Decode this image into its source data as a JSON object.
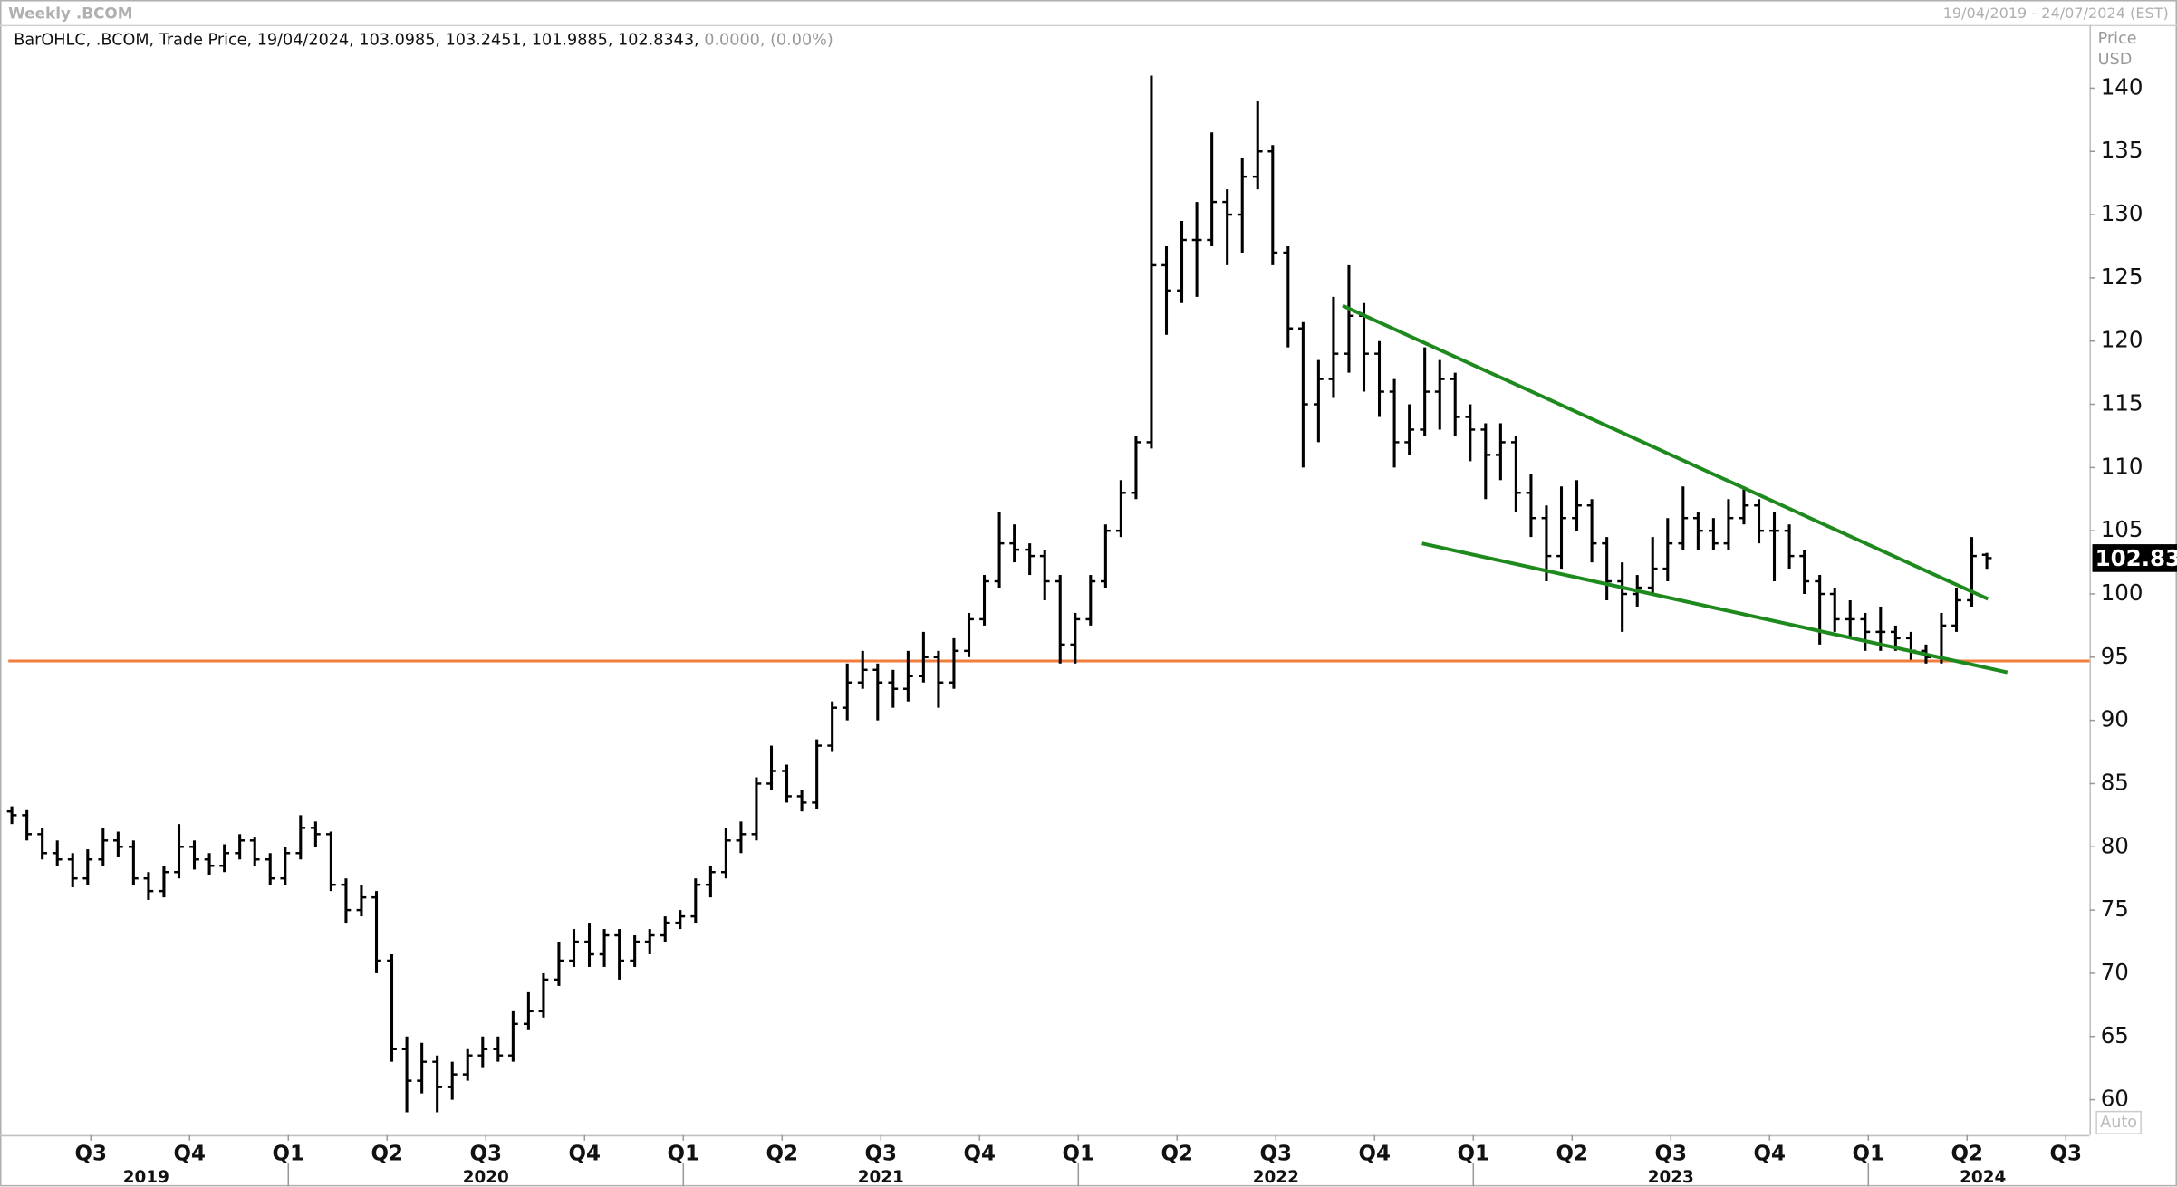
{
  "chart_data": {
    "type": "ohlc",
    "title": "Weekly .BCOM",
    "date_range": "19/04/2019 - 24/07/2024 (EST)",
    "info_line": "BarOHLC, .BCOM, Trade Price, 19/04/2024, 103.0985, 103.2451, 101.9885, 102.8343,",
    "change_text": "0.0000, (0.00%)",
    "y_axis_label": "Price",
    "y_axis_unit": "USD",
    "last_label": "102.83",
    "auto_button": "Auto",
    "color": "#000000",
    "xlim": [
      2019.27,
      2024.56
    ],
    "ylim": [
      57.2,
      145
    ],
    "yticks": [
      60,
      65,
      70,
      75,
      80,
      85,
      90,
      95,
      100,
      105,
      110,
      115,
      120,
      125,
      130,
      135,
      140
    ],
    "xticks": [
      {
        "value": 2019.5,
        "label": "Q3"
      },
      {
        "value": 2019.75,
        "label": "Q4"
      },
      {
        "value": 2020.0,
        "label": "Q1"
      },
      {
        "value": 2020.25,
        "label": "Q2"
      },
      {
        "value": 2020.5,
        "label": "Q3"
      },
      {
        "value": 2020.75,
        "label": "Q4"
      },
      {
        "value": 2021.0,
        "label": "Q1"
      },
      {
        "value": 2021.25,
        "label": "Q2"
      },
      {
        "value": 2021.5,
        "label": "Q3"
      },
      {
        "value": 2021.75,
        "label": "Q4"
      },
      {
        "value": 2022.0,
        "label": "Q1"
      },
      {
        "value": 2022.25,
        "label": "Q2"
      },
      {
        "value": 2022.5,
        "label": "Q3"
      },
      {
        "value": 2022.75,
        "label": "Q4"
      },
      {
        "value": 2023.0,
        "label": "Q1"
      },
      {
        "value": 2023.25,
        "label": "Q2"
      },
      {
        "value": 2023.5,
        "label": "Q3"
      },
      {
        "value": 2023.75,
        "label": "Q4"
      },
      {
        "value": 2024.0,
        "label": "Q1"
      },
      {
        "value": 2024.25,
        "label": "Q2"
      },
      {
        "value": 2024.5,
        "label": "Q3"
      }
    ],
    "year_labels": [
      {
        "value": 2019.64,
        "label": "2019"
      },
      {
        "value": 2020.5,
        "label": "2020"
      },
      {
        "value": 2021.5,
        "label": "2021"
      },
      {
        "value": 2022.5,
        "label": "2022"
      },
      {
        "value": 2023.5,
        "label": "2023"
      },
      {
        "value": 2024.29,
        "label": "2024"
      }
    ],
    "hline": {
      "value": 94.7,
      "color": "#f07d3c"
    },
    "trendlines": [
      {
        "color": "#1e8a1e",
        "x": [
          2022.669,
          2024.303
        ],
        "y": [
          122.8,
          99.6
        ]
      },
      {
        "color": "#1e8a1e",
        "x": [
          2022.87,
          2024.352
        ],
        "y": [
          104,
          93.8
        ]
      }
    ],
    "x": [
      2019.3,
      2019.338,
      2019.377,
      2019.415,
      2019.454,
      2019.492,
      2019.531,
      2019.569,
      2019.608,
      2019.646,
      2019.685,
      2019.723,
      2019.762,
      2019.8,
      2019.838,
      2019.877,
      2019.915,
      2019.954,
      2019.992,
      2020.031,
      2020.069,
      2020.108,
      2020.146,
      2020.185,
      2020.223,
      2020.262,
      2020.3,
      2020.338,
      2020.377,
      2020.415,
      2020.454,
      2020.492,
      2020.531,
      2020.569,
      2020.608,
      2020.646,
      2020.685,
      2020.723,
      2020.762,
      2020.8,
      2020.838,
      2020.877,
      2020.915,
      2020.954,
      2020.992,
      2021.031,
      2021.069,
      2021.108,
      2021.146,
      2021.185,
      2021.223,
      2021.262,
      2021.3,
      2021.338,
      2021.377,
      2021.415,
      2021.454,
      2021.492,
      2021.531,
      2021.569,
      2021.608,
      2021.646,
      2021.685,
      2021.723,
      2021.762,
      2021.8,
      2021.838,
      2021.877,
      2021.915,
      2021.954,
      2021.992,
      2022.031,
      2022.069,
      2022.108,
      2022.146,
      2022.185,
      2022.223,
      2022.262,
      2022.3,
      2022.338,
      2022.377,
      2022.415,
      2022.454,
      2022.492,
      2022.531,
      2022.569,
      2022.608,
      2022.646,
      2022.685,
      2022.723,
      2022.762,
      2022.8,
      2022.838,
      2022.877,
      2022.915,
      2022.954,
      2022.992,
      2023.031,
      2023.069,
      2023.108,
      2023.146,
      2023.185,
      2023.223,
      2023.262,
      2023.3,
      2023.338,
      2023.377,
      2023.415,
      2023.454,
      2023.492,
      2023.531,
      2023.569,
      2023.608,
      2023.646,
      2023.685,
      2023.723,
      2023.762,
      2023.8,
      2023.838,
      2023.877,
      2023.915,
      2023.954,
      2023.992,
      2024.031,
      2024.069,
      2024.108,
      2024.146,
      2024.185,
      2024.223,
      2024.262,
      2024.3
    ],
    "ohlc": [
      [
        82.8,
        83.2,
        81.8,
        82.5
      ],
      [
        82.5,
        82.9,
        80.5,
        81
      ],
      [
        81,
        81.5,
        79,
        79.5
      ],
      [
        79.5,
        80.5,
        78.5,
        79
      ],
      [
        79,
        79.5,
        76.8,
        77.5
      ],
      [
        77.5,
        79.8,
        77,
        79
      ],
      [
        79,
        81.5,
        78.5,
        80.5
      ],
      [
        80.5,
        81.2,
        79.2,
        80
      ],
      [
        80,
        80.5,
        77,
        77.5
      ],
      [
        77.5,
        78,
        75.8,
        76.5
      ],
      [
        76.5,
        78.5,
        76,
        78
      ],
      [
        78,
        81.8,
        77.5,
        80
      ],
      [
        80,
        80.5,
        78.2,
        79
      ],
      [
        79,
        79.5,
        77.8,
        78.5
      ],
      [
        78.5,
        80.2,
        78,
        79.5
      ],
      [
        79.5,
        81,
        79,
        80.5
      ],
      [
        80.5,
        80.8,
        78.5,
        79
      ],
      [
        79,
        79.5,
        77,
        77.5
      ],
      [
        77.5,
        80,
        77,
        79.5
      ],
      [
        79.5,
        82.5,
        79,
        81.5
      ],
      [
        81.5,
        82,
        80,
        81
      ],
      [
        81,
        81.2,
        76.5,
        77
      ],
      [
        77,
        77.5,
        74,
        75
      ],
      [
        75,
        77,
        74.5,
        76
      ],
      [
        76,
        76.5,
        70,
        71
      ],
      [
        71,
        71.5,
        63,
        64
      ],
      [
        64,
        65,
        59,
        61.5
      ],
      [
        61.5,
        64.5,
        60.5,
        63
      ],
      [
        63,
        63.5,
        59,
        61
      ],
      [
        61,
        63,
        60,
        62
      ],
      [
        62,
        64,
        61.5,
        63.5
      ],
      [
        63.5,
        65,
        62.5,
        64
      ],
      [
        64,
        65,
        63,
        63.5
      ],
      [
        63.5,
        67,
        63,
        66
      ],
      [
        66,
        68.5,
        65.5,
        67
      ],
      [
        67,
        70,
        66.5,
        69.5
      ],
      [
        69.5,
        72.5,
        69,
        71
      ],
      [
        71,
        73.5,
        70.5,
        72.5
      ],
      [
        72.5,
        74,
        70.5,
        71.5
      ],
      [
        71.5,
        73.5,
        70.5,
        73
      ],
      [
        73,
        73.5,
        69.5,
        71
      ],
      [
        71,
        73,
        70.5,
        72.5
      ],
      [
        72.5,
        73.5,
        71.5,
        73
      ],
      [
        73,
        74.5,
        72.5,
        74
      ],
      [
        74,
        75,
        73.5,
        74.5
      ],
      [
        74.5,
        77.5,
        74,
        77
      ],
      [
        77,
        78.5,
        76,
        78
      ],
      [
        78,
        81.5,
        77.5,
        80.5
      ],
      [
        80.5,
        82,
        79.5,
        81
      ],
      [
        81,
        85.5,
        80.5,
        85
      ],
      [
        85,
        88,
        84.5,
        86
      ],
      [
        86,
        86.5,
        83.5,
        84
      ],
      [
        84,
        84.5,
        82.8,
        83.5
      ],
      [
        83.5,
        88.5,
        83,
        88
      ],
      [
        88,
        91.5,
        87.5,
        91
      ],
      [
        91,
        94.5,
        90,
        93
      ],
      [
        93,
        95.5,
        92.5,
        94
      ],
      [
        94,
        94.5,
        90,
        93
      ],
      [
        93,
        94,
        91,
        92.5
      ],
      [
        92.5,
        95.5,
        91.5,
        93.5
      ],
      [
        93.5,
        97,
        93,
        95
      ],
      [
        95,
        95.5,
        91,
        93
      ],
      [
        93,
        96.5,
        92.5,
        95.5
      ],
      [
        95.5,
        98.5,
        95,
        98
      ],
      [
        98,
        101.5,
        97.5,
        101
      ],
      [
        101,
        106.5,
        100.5,
        104
      ],
      [
        104,
        105.5,
        102.5,
        103.5
      ],
      [
        103.5,
        104,
        101.5,
        103
      ],
      [
        103,
        103.5,
        99.5,
        101
      ],
      [
        101,
        101.5,
        94.5,
        96
      ],
      [
        96,
        98.5,
        94.5,
        98
      ],
      [
        98,
        101.5,
        97.5,
        101
      ],
      [
        101,
        105.5,
        100.5,
        105
      ],
      [
        105,
        109,
        104.5,
        108
      ],
      [
        108,
        112.5,
        107.5,
        112
      ],
      [
        112,
        141,
        111.5,
        126
      ],
      [
        126,
        127.5,
        120.5,
        124
      ],
      [
        124,
        129.5,
        123,
        128
      ],
      [
        128,
        131,
        123.5,
        128
      ],
      [
        128,
        136.5,
        127.5,
        131
      ],
      [
        131,
        132,
        126,
        130
      ],
      [
        130,
        134.5,
        127,
        133
      ],
      [
        133,
        139,
        132,
        135
      ],
      [
        135,
        135.5,
        126,
        127
      ],
      [
        127,
        127.5,
        119.5,
        121
      ],
      [
        121,
        121.5,
        110,
        115
      ],
      [
        115,
        118.5,
        112,
        117
      ],
      [
        117,
        123.5,
        115.5,
        119
      ],
      [
        119,
        126,
        117.5,
        122
      ],
      [
        122,
        123,
        116,
        119
      ],
      [
        119,
        120,
        114,
        116
      ],
      [
        116,
        117,
        110,
        112
      ],
      [
        112,
        115,
        111,
        113
      ],
      [
        113,
        119.5,
        112.5,
        116
      ],
      [
        116,
        118.5,
        113,
        117
      ],
      [
        117,
        117.5,
        112.5,
        114
      ],
      [
        114,
        115,
        110.5,
        113
      ],
      [
        113,
        113.5,
        107.5,
        111
      ],
      [
        111,
        113.5,
        109,
        112
      ],
      [
        112,
        112.5,
        106.5,
        108
      ],
      [
        108,
        109.5,
        104.5,
        106
      ],
      [
        106,
        107,
        101,
        103
      ],
      [
        103,
        108.5,
        102,
        106
      ],
      [
        106,
        109,
        105,
        107
      ],
      [
        107,
        107.5,
        102.5,
        104
      ],
      [
        104,
        104.5,
        99.5,
        101
      ],
      [
        101,
        102.5,
        97,
        100
      ],
      [
        100,
        101.5,
        99,
        100.5
      ],
      [
        100.5,
        104.5,
        100,
        102
      ],
      [
        102,
        106,
        101,
        104
      ],
      [
        104,
        108.5,
        103.5,
        106
      ],
      [
        106,
        106.5,
        103.5,
        105
      ],
      [
        105,
        106,
        103.5,
        104
      ],
      [
        104,
        107.5,
        103.5,
        106
      ],
      [
        106,
        108.5,
        105.5,
        107
      ],
      [
        107,
        107.5,
        104,
        105
      ],
      [
        105,
        106.5,
        101,
        105
      ],
      [
        105,
        105.5,
        102,
        103
      ],
      [
        103,
        103.5,
        100,
        101
      ],
      [
        101,
        101.5,
        96,
        100
      ],
      [
        100,
        100.5,
        97,
        98
      ],
      [
        98,
        99.5,
        96.5,
        98
      ],
      [
        98,
        98.5,
        95.5,
        97
      ],
      [
        97,
        99,
        95.5,
        97
      ],
      [
        97,
        97.5,
        95.5,
        96.5
      ],
      [
        96.5,
        97,
        94.8,
        95.5
      ],
      [
        95.5,
        96,
        94.5,
        95
      ],
      [
        95,
        98.5,
        94.5,
        97.5
      ],
      [
        97.5,
        100.5,
        97,
        99.5
      ],
      [
        99.5,
        104.5,
        99,
        103
      ],
      [
        103.0985,
        103.2451,
        101.9885,
        102.8343
      ]
    ]
  }
}
